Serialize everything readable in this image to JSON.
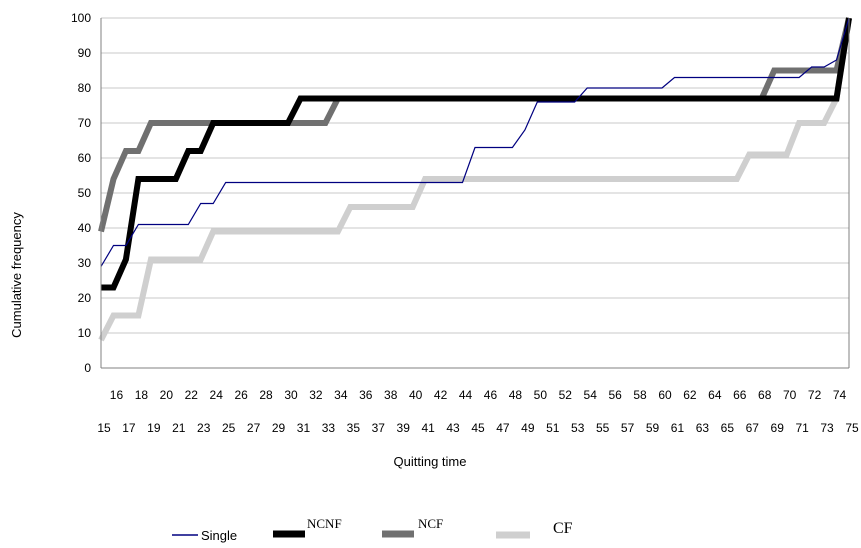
{
  "chart_data": {
    "type": "line",
    "title": "",
    "xlabel": "Quitting time",
    "ylabel": "Cumulative frequency",
    "ylim": [
      0,
      100
    ],
    "yticks": [
      0,
      10,
      20,
      30,
      40,
      50,
      60,
      70,
      80,
      90,
      100
    ],
    "xlim": [
      15,
      75
    ],
    "xticks_row1": [
      16,
      18,
      20,
      22,
      24,
      26,
      28,
      30,
      32,
      34,
      36,
      38,
      40,
      42,
      44,
      46,
      48,
      50,
      52,
      54,
      56,
      58,
      60,
      62,
      64,
      66,
      68,
      70,
      72,
      74
    ],
    "xticks_row2": [
      15,
      17,
      19,
      21,
      23,
      25,
      27,
      29,
      31,
      33,
      35,
      37,
      39,
      41,
      43,
      45,
      47,
      49,
      51,
      53,
      55,
      57,
      59,
      61,
      63,
      65,
      67,
      69,
      71,
      73,
      75
    ],
    "grid": "horizontal",
    "legend_position": "bottom",
    "series": [
      {
        "name": "Single",
        "color": "#000080",
        "points": [
          [
            15,
            29
          ],
          [
            16,
            35
          ],
          [
            17,
            35
          ],
          [
            18,
            41
          ],
          [
            19,
            41
          ],
          [
            20,
            41
          ],
          [
            21,
            41
          ],
          [
            22,
            41
          ],
          [
            23,
            47
          ],
          [
            24,
            47
          ],
          [
            25,
            53
          ],
          [
            26,
            53
          ],
          [
            27,
            53
          ],
          [
            28,
            53
          ],
          [
            29,
            53
          ],
          [
            30,
            53
          ],
          [
            31,
            53
          ],
          [
            32,
            53
          ],
          [
            33,
            53
          ],
          [
            34,
            53
          ],
          [
            35,
            53
          ],
          [
            36,
            53
          ],
          [
            37,
            53
          ],
          [
            38,
            53
          ],
          [
            39,
            53
          ],
          [
            40,
            53
          ],
          [
            41,
            53
          ],
          [
            42,
            53
          ],
          [
            43,
            53
          ],
          [
            44,
            53
          ],
          [
            45,
            63
          ],
          [
            46,
            63
          ],
          [
            47,
            63
          ],
          [
            48,
            63
          ],
          [
            49,
            68
          ],
          [
            50,
            76
          ],
          [
            51,
            76
          ],
          [
            52,
            76
          ],
          [
            53,
            76
          ],
          [
            54,
            80
          ],
          [
            55,
            80
          ],
          [
            56,
            80
          ],
          [
            57,
            80
          ],
          [
            58,
            80
          ],
          [
            59,
            80
          ],
          [
            60,
            80
          ],
          [
            61,
            83
          ],
          [
            62,
            83
          ],
          [
            63,
            83
          ],
          [
            64,
            83
          ],
          [
            65,
            83
          ],
          [
            66,
            83
          ],
          [
            67,
            83
          ],
          [
            68,
            83
          ],
          [
            69,
            83
          ],
          [
            70,
            83
          ],
          [
            71,
            83
          ],
          [
            72,
            86
          ],
          [
            73,
            86
          ],
          [
            74,
            88
          ],
          [
            75,
            100
          ]
        ]
      },
      {
        "name": "NCNF",
        "color": "#000000",
        "points": [
          [
            15,
            23
          ],
          [
            16,
            23
          ],
          [
            17,
            31
          ],
          [
            18,
            54
          ],
          [
            19,
            54
          ],
          [
            20,
            54
          ],
          [
            21,
            54
          ],
          [
            22,
            62
          ],
          [
            23,
            62
          ],
          [
            24,
            70
          ],
          [
            25,
            70
          ],
          [
            26,
            70
          ],
          [
            27,
            70
          ],
          [
            28,
            70
          ],
          [
            29,
            70
          ],
          [
            30,
            70
          ],
          [
            31,
            77
          ],
          [
            32,
            77
          ],
          [
            33,
            77
          ],
          [
            34,
            77
          ],
          [
            35,
            77
          ],
          [
            36,
            77
          ],
          [
            37,
            77
          ],
          [
            38,
            77
          ],
          [
            39,
            77
          ],
          [
            40,
            77
          ],
          [
            41,
            77
          ],
          [
            42,
            77
          ],
          [
            43,
            77
          ],
          [
            44,
            77
          ],
          [
            45,
            77
          ],
          [
            46,
            77
          ],
          [
            47,
            77
          ],
          [
            48,
            77
          ],
          [
            49,
            77
          ],
          [
            50,
            77
          ],
          [
            51,
            77
          ],
          [
            52,
            77
          ],
          [
            53,
            77
          ],
          [
            54,
            77
          ],
          [
            55,
            77
          ],
          [
            56,
            77
          ],
          [
            57,
            77
          ],
          [
            58,
            77
          ],
          [
            59,
            77
          ],
          [
            60,
            77
          ],
          [
            61,
            77
          ],
          [
            62,
            77
          ],
          [
            63,
            77
          ],
          [
            64,
            77
          ],
          [
            65,
            77
          ],
          [
            66,
            77
          ],
          [
            67,
            77
          ],
          [
            68,
            77
          ],
          [
            69,
            77
          ],
          [
            70,
            77
          ],
          [
            71,
            77
          ],
          [
            72,
            77
          ],
          [
            73,
            77
          ],
          [
            74,
            77
          ],
          [
            75,
            100
          ]
        ]
      },
      {
        "name": "NCF",
        "color": "#707070",
        "points": [
          [
            15,
            39
          ],
          [
            16,
            54
          ],
          [
            17,
            62
          ],
          [
            18,
            62
          ],
          [
            19,
            70
          ],
          [
            20,
            70
          ],
          [
            21,
            70
          ],
          [
            22,
            70
          ],
          [
            23,
            70
          ],
          [
            24,
            70
          ],
          [
            25,
            70
          ],
          [
            26,
            70
          ],
          [
            27,
            70
          ],
          [
            28,
            70
          ],
          [
            29,
            70
          ],
          [
            30,
            70
          ],
          [
            31,
            70
          ],
          [
            32,
            70
          ],
          [
            33,
            70
          ],
          [
            34,
            77
          ],
          [
            35,
            77
          ],
          [
            36,
            77
          ],
          [
            37,
            77
          ],
          [
            38,
            77
          ],
          [
            39,
            77
          ],
          [
            40,
            77
          ],
          [
            41,
            77
          ],
          [
            42,
            77
          ],
          [
            43,
            77
          ],
          [
            44,
            77
          ],
          [
            45,
            77
          ],
          [
            46,
            77
          ],
          [
            47,
            77
          ],
          [
            48,
            77
          ],
          [
            49,
            77
          ],
          [
            50,
            77
          ],
          [
            51,
            77
          ],
          [
            52,
            77
          ],
          [
            53,
            77
          ],
          [
            54,
            77
          ],
          [
            55,
            77
          ],
          [
            56,
            77
          ],
          [
            57,
            77
          ],
          [
            58,
            77
          ],
          [
            59,
            77
          ],
          [
            60,
            77
          ],
          [
            61,
            77
          ],
          [
            62,
            77
          ],
          [
            63,
            77
          ],
          [
            64,
            77
          ],
          [
            65,
            77
          ],
          [
            66,
            77
          ],
          [
            67,
            77
          ],
          [
            68,
            77
          ],
          [
            69,
            85
          ],
          [
            70,
            85
          ],
          [
            71,
            85
          ],
          [
            72,
            85
          ],
          [
            73,
            85
          ],
          [
            74,
            85
          ],
          [
            75,
            100
          ]
        ]
      },
      {
        "name": "CF",
        "color": "#cfcfcf",
        "points": [
          [
            15,
            8
          ],
          [
            16,
            15
          ],
          [
            17,
            15
          ],
          [
            18,
            15
          ],
          [
            19,
            31
          ],
          [
            20,
            31
          ],
          [
            21,
            31
          ],
          [
            22,
            31
          ],
          [
            23,
            31
          ],
          [
            24,
            39
          ],
          [
            25,
            39
          ],
          [
            26,
            39
          ],
          [
            27,
            39
          ],
          [
            28,
            39
          ],
          [
            29,
            39
          ],
          [
            30,
            39
          ],
          [
            31,
            39
          ],
          [
            32,
            39
          ],
          [
            33,
            39
          ],
          [
            34,
            39
          ],
          [
            35,
            46
          ],
          [
            36,
            46
          ],
          [
            37,
            46
          ],
          [
            38,
            46
          ],
          [
            39,
            46
          ],
          [
            40,
            46
          ],
          [
            41,
            54
          ],
          [
            42,
            54
          ],
          [
            43,
            54
          ],
          [
            44,
            54
          ],
          [
            45,
            54
          ],
          [
            46,
            54
          ],
          [
            47,
            54
          ],
          [
            48,
            54
          ],
          [
            49,
            54
          ],
          [
            50,
            54
          ],
          [
            51,
            54
          ],
          [
            52,
            54
          ],
          [
            53,
            54
          ],
          [
            54,
            54
          ],
          [
            55,
            54
          ],
          [
            56,
            54
          ],
          [
            57,
            54
          ],
          [
            58,
            54
          ],
          [
            59,
            54
          ],
          [
            60,
            54
          ],
          [
            61,
            54
          ],
          [
            62,
            54
          ],
          [
            63,
            54
          ],
          [
            64,
            54
          ],
          [
            65,
            54
          ],
          [
            66,
            54
          ],
          [
            67,
            61
          ],
          [
            68,
            61
          ],
          [
            69,
            61
          ],
          [
            70,
            61
          ],
          [
            71,
            70
          ],
          [
            72,
            70
          ],
          [
            73,
            70
          ],
          [
            74,
            77
          ],
          [
            75,
            100
          ]
        ]
      }
    ]
  }
}
